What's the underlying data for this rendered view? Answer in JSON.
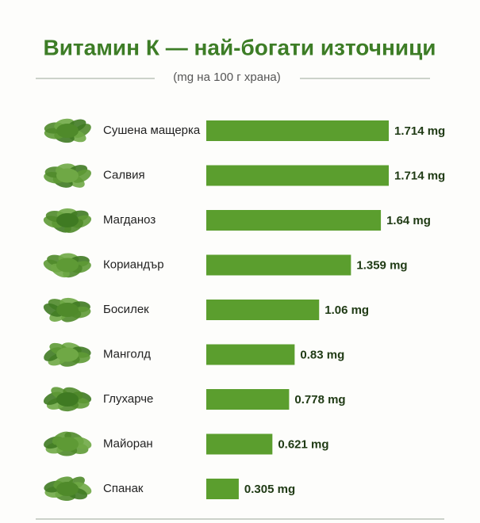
{
  "chart_data": {
    "type": "bar",
    "orientation": "horizontal",
    "title": "Витамин К — най-богати източници",
    "subtitle": "(mg на 100 г храна)",
    "categories": [
      "Сушена мащерка",
      "Салвия",
      "Магданоз",
      "Кориандър",
      "Босилек",
      "Манголд",
      "Глухарче",
      "Майоран",
      "Спанак"
    ],
    "values": [
      1.714,
      1.714,
      1.64,
      1.359,
      1.06,
      0.83,
      0.778,
      0.621,
      0.305
    ],
    "value_labels": [
      "1.714 mg",
      "1.714 mg",
      "1.64 mg",
      "1.359 mg",
      "1.06 mg",
      "0.83 mg",
      "0.778 mg",
      "0.621 mg",
      "0.305 mg"
    ],
    "color": "#5b9e2e"
  }
}
